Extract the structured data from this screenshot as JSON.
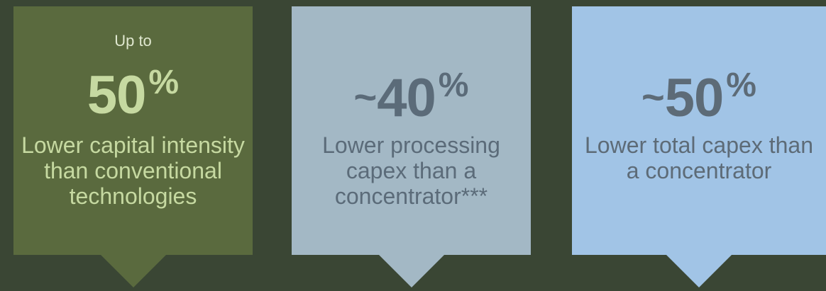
{
  "cards": [
    {
      "prefix": "Up to",
      "tilde": "",
      "value": "50",
      "unit": "%",
      "description": "Lower capital intensity than conventional technologies"
    },
    {
      "prefix": "",
      "tilde": "~",
      "value": "40",
      "unit": "%",
      "description": "Lower processing capex than a concentrator***"
    },
    {
      "prefix": "",
      "tilde": "~",
      "value": "50",
      "unit": "%",
      "description": "Lower total capex than a concentrator"
    }
  ],
  "colors": {
    "background": "#3a4634",
    "card1": "#5a6a3e",
    "card2": "#a3b8c5",
    "card3": "#a1c4e6"
  }
}
